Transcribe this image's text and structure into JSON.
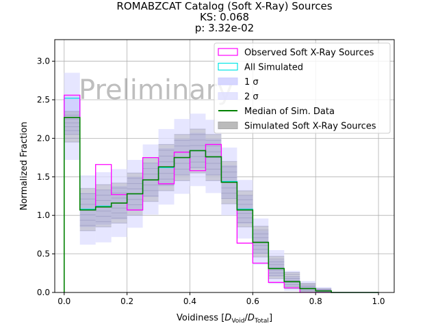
{
  "chart_data": {
    "type": "histogram",
    "title_lines": [
      "ROMABZCAT Catalog (Soft X-Ray) Sources",
      "KS: 0.068",
      "p: 3.32e-02"
    ],
    "xlabel": "Voidiness [D_Void/D_Total]",
    "ylabel": "Normalized Fraction",
    "xlim": [
      -0.03,
      1.05
    ],
    "ylim": [
      0.0,
      3.28
    ],
    "xticks": [
      0.0,
      0.2,
      0.4,
      0.6,
      0.8,
      1.0
    ],
    "xtick_labels": [
      "0.0",
      "0.2",
      "0.4",
      "0.6",
      "0.8",
      "1.0"
    ],
    "yticks": [
      0.0,
      0.5,
      1.0,
      1.5,
      2.0,
      2.5,
      3.0
    ],
    "ytick_labels": [
      "0.0",
      "0.5",
      "1.0",
      "1.5",
      "2.0",
      "2.5",
      "3.0"
    ],
    "grid": true,
    "watermark": "Preliminary",
    "legend_position": "top-right",
    "legend": [
      {
        "label": "Observed Soft X-Ray Sources",
        "style": "box",
        "color": "#ff00ff"
      },
      {
        "label": "All Simulated",
        "style": "box",
        "color": "#00e5e5"
      },
      {
        "label": "1 σ",
        "style": "fill",
        "color": "#ccccff"
      },
      {
        "label": "2 σ",
        "style": "fill",
        "color": "#ddddff"
      },
      {
        "label": "Median of Sim. Data",
        "style": "line",
        "color": "#008000"
      },
      {
        "label": "Simulated Soft X-Ray Sources",
        "style": "fill",
        "color": "#aaaaaa"
      }
    ],
    "bin_edges": [
      0.0,
      0.05,
      0.1,
      0.15,
      0.2,
      0.25,
      0.3,
      0.35,
      0.4,
      0.45,
      0.5,
      0.55,
      0.6,
      0.65,
      0.7,
      0.75,
      0.8,
      0.85,
      0.9,
      0.95,
      1.0
    ],
    "series": [
      {
        "name": "Observed Soft X-Ray Sources",
        "color": "#ff00ff",
        "values": [
          2.56,
          1.07,
          1.66,
          1.27,
          1.07,
          1.75,
          1.41,
          1.82,
          1.58,
          1.92,
          1.43,
          0.64,
          0.38,
          0.13,
          0.06,
          0.0,
          0.0,
          0.0,
          0.0,
          0.0
        ]
      },
      {
        "name": "All Simulated",
        "color": "#00e5e5",
        "values": [
          2.52,
          1.08,
          1.12,
          1.16,
          1.28,
          1.46,
          1.62,
          1.75,
          1.84,
          1.76,
          1.44,
          1.08,
          0.65,
          0.31,
          0.14,
          0.05,
          0.02,
          0.0,
          0.0,
          0.0
        ]
      },
      {
        "name": "Median of Sim. Data",
        "color": "#008000",
        "values": [
          2.27,
          1.07,
          1.11,
          1.16,
          1.28,
          1.46,
          1.63,
          1.75,
          1.84,
          1.76,
          1.43,
          1.07,
          0.65,
          0.31,
          0.14,
          0.05,
          0.02,
          0.0,
          0.0,
          0.0
        ]
      },
      {
        "name": "1 σ",
        "color": "#ccccff",
        "low": [
          2.05,
          0.85,
          0.88,
          0.95,
          1.06,
          1.24,
          1.38,
          1.52,
          1.61,
          1.52,
          1.22,
          0.89,
          0.5,
          0.21,
          0.08,
          0.02,
          0.0,
          0.0,
          0.0,
          0.0
        ],
        "high": [
          2.55,
          1.29,
          1.33,
          1.38,
          1.5,
          1.68,
          1.87,
          1.99,
          2.07,
          1.99,
          1.65,
          1.26,
          0.8,
          0.42,
          0.2,
          0.09,
          0.04,
          0.0,
          0.0,
          0.0
        ]
      },
      {
        "name": "2 σ",
        "color": "#ddddff",
        "low": [
          1.72,
          0.62,
          0.65,
          0.72,
          0.84,
          1.01,
          1.14,
          1.28,
          1.38,
          1.29,
          1.0,
          0.7,
          0.36,
          0.11,
          0.02,
          0.0,
          0.0,
          0.0,
          0.0,
          0.0
        ],
        "high": [
          2.85,
          1.52,
          1.56,
          1.6,
          1.72,
          1.92,
          2.12,
          2.25,
          2.32,
          2.24,
          1.88,
          1.46,
          0.96,
          0.55,
          0.28,
          0.15,
          0.07,
          0.0,
          0.0,
          0.0
        ]
      },
      {
        "name": "Simulated Soft X-Ray Sources",
        "color": "#999999",
        "low": [
          1.95,
          0.8,
          0.85,
          0.9,
          1.0,
          1.18,
          1.32,
          1.45,
          1.55,
          1.45,
          1.15,
          0.85,
          0.46,
          0.18,
          0.05,
          0.0,
          0.0,
          0.0,
          0.0,
          0.0
        ],
        "high": [
          2.35,
          1.35,
          1.4,
          1.42,
          1.55,
          1.75,
          1.92,
          2.05,
          2.12,
          2.05,
          1.7,
          1.32,
          0.86,
          0.47,
          0.26,
          0.12,
          0.05,
          0.0,
          0.0,
          0.0
        ]
      }
    ]
  }
}
